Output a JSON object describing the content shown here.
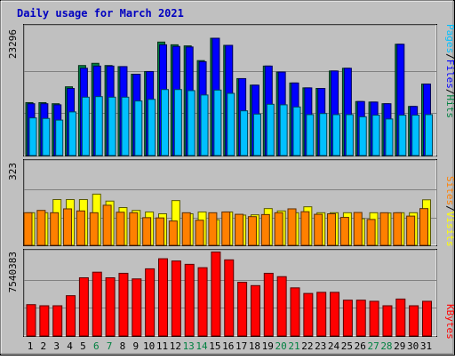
{
  "chart_data": {
    "type": "bar",
    "title": "Daily usage for March 2021",
    "categories": [
      "1",
      "2",
      "3",
      "4",
      "5",
      "6",
      "7",
      "8",
      "9",
      "10",
      "11",
      "12",
      "13",
      "14",
      "15",
      "16",
      "17",
      "18",
      "19",
      "20",
      "21",
      "22",
      "23",
      "24",
      "25",
      "26",
      "27",
      "28",
      "29",
      "30",
      "31"
    ],
    "weekend_days": [
      "6",
      "7",
      "13",
      "14",
      "20",
      "21",
      "27",
      "28"
    ],
    "panels": [
      {
        "id": "hits",
        "ymax": 23296,
        "ymax_label": "23296",
        "legend": [
          "Pages",
          "/",
          "Files",
          "/",
          "Hits"
        ],
        "legend_colors": [
          "#00c0ff",
          "#000000",
          "#0000ff",
          "#000000",
          "#008040"
        ],
        "series": [
          {
            "name": "Hits",
            "color": "#008040",
            "values": [
              9700,
              9700,
              9500,
              12600,
              16500,
              16900,
              16500,
              16300,
              14900,
              15400,
              20800,
              20300,
              20100,
              17400,
              21500,
              20200,
              14100,
              12900,
              16400,
              15300,
              13300,
              12400,
              12300,
              15500,
              16000,
              9900,
              9800,
              9500,
              20400,
              9000,
              13100
            ]
          },
          {
            "name": "Files",
            "color": "#0000ff",
            "values": [
              9500,
              9500,
              9300,
              12300,
              16000,
              16400,
              16400,
              16300,
              14900,
              15400,
              20300,
              20000,
              19900,
              17200,
              21500,
              20200,
              14100,
              12900,
              16400,
              15300,
              13300,
              12400,
              12300,
              15500,
              16000,
              9900,
              9800,
              9500,
              20400,
              9000,
              13100
            ]
          },
          {
            "name": "Pages",
            "color": "#00c0ff",
            "values": [
              6900,
              6800,
              6500,
              8000,
              10700,
              10800,
              10700,
              10700,
              10000,
              10300,
              12100,
              12100,
              11900,
              11100,
              12000,
              11400,
              8200,
              7600,
              9400,
              9300,
              8900,
              7500,
              7700,
              7500,
              7500,
              7100,
              7400,
              6700,
              7400,
              7400,
              7500
            ]
          }
        ]
      },
      {
        "id": "visits",
        "ymax": 323,
        "ymax_label": "323",
        "legend": [
          "Sites",
          "/",
          "Visits"
        ],
        "legend_colors": [
          "#ff8000",
          "#000000",
          "#ffff00"
        ],
        "series": [
          {
            "name": "Visits",
            "color": "#ffff00",
            "values": [
              126,
              126,
              177,
              177,
              177,
              198,
              171,
              146,
              135,
              129,
              122,
              173,
              122,
              129,
              99,
              129,
              117,
              118,
              142,
              133,
              126,
              149,
              126,
              126,
              126,
              103,
              126,
              125,
              126,
              126,
              176
            ]
          },
          {
            "name": "Sites",
            "color": "#ff8000",
            "values": [
              126,
              135,
              126,
              141,
              133,
              126,
              155,
              128,
              126,
              107,
              106,
              94,
              126,
              97,
              126,
              129,
              120,
              111,
              119,
              126,
              141,
              130,
              120,
              122,
              108,
              127,
              100,
              126,
              126,
              113,
              142
            ]
          }
        ]
      },
      {
        "id": "kbytes",
        "ymax": 7540383,
        "ymax_label": "7540383",
        "legend": [
          "KBytes"
        ],
        "legend_colors": [
          "#ff0000"
        ],
        "series": [
          {
            "name": "KBytes",
            "color": "#ff0000",
            "values": [
              2800000,
              2700000,
              2700000,
              3600000,
              5200000,
              5700000,
              5200000,
              5600000,
              5100000,
              6000000,
              6900000,
              6700000,
              6400000,
              6100000,
              7500000,
              6800000,
              4800000,
              4500000,
              5600000,
              5300000,
              4300000,
              3800000,
              3900000,
              3900000,
              3200000,
              3200000,
              3100000,
              2700000,
              3300000,
              2700000,
              3100000
            ]
          }
        ]
      }
    ]
  }
}
